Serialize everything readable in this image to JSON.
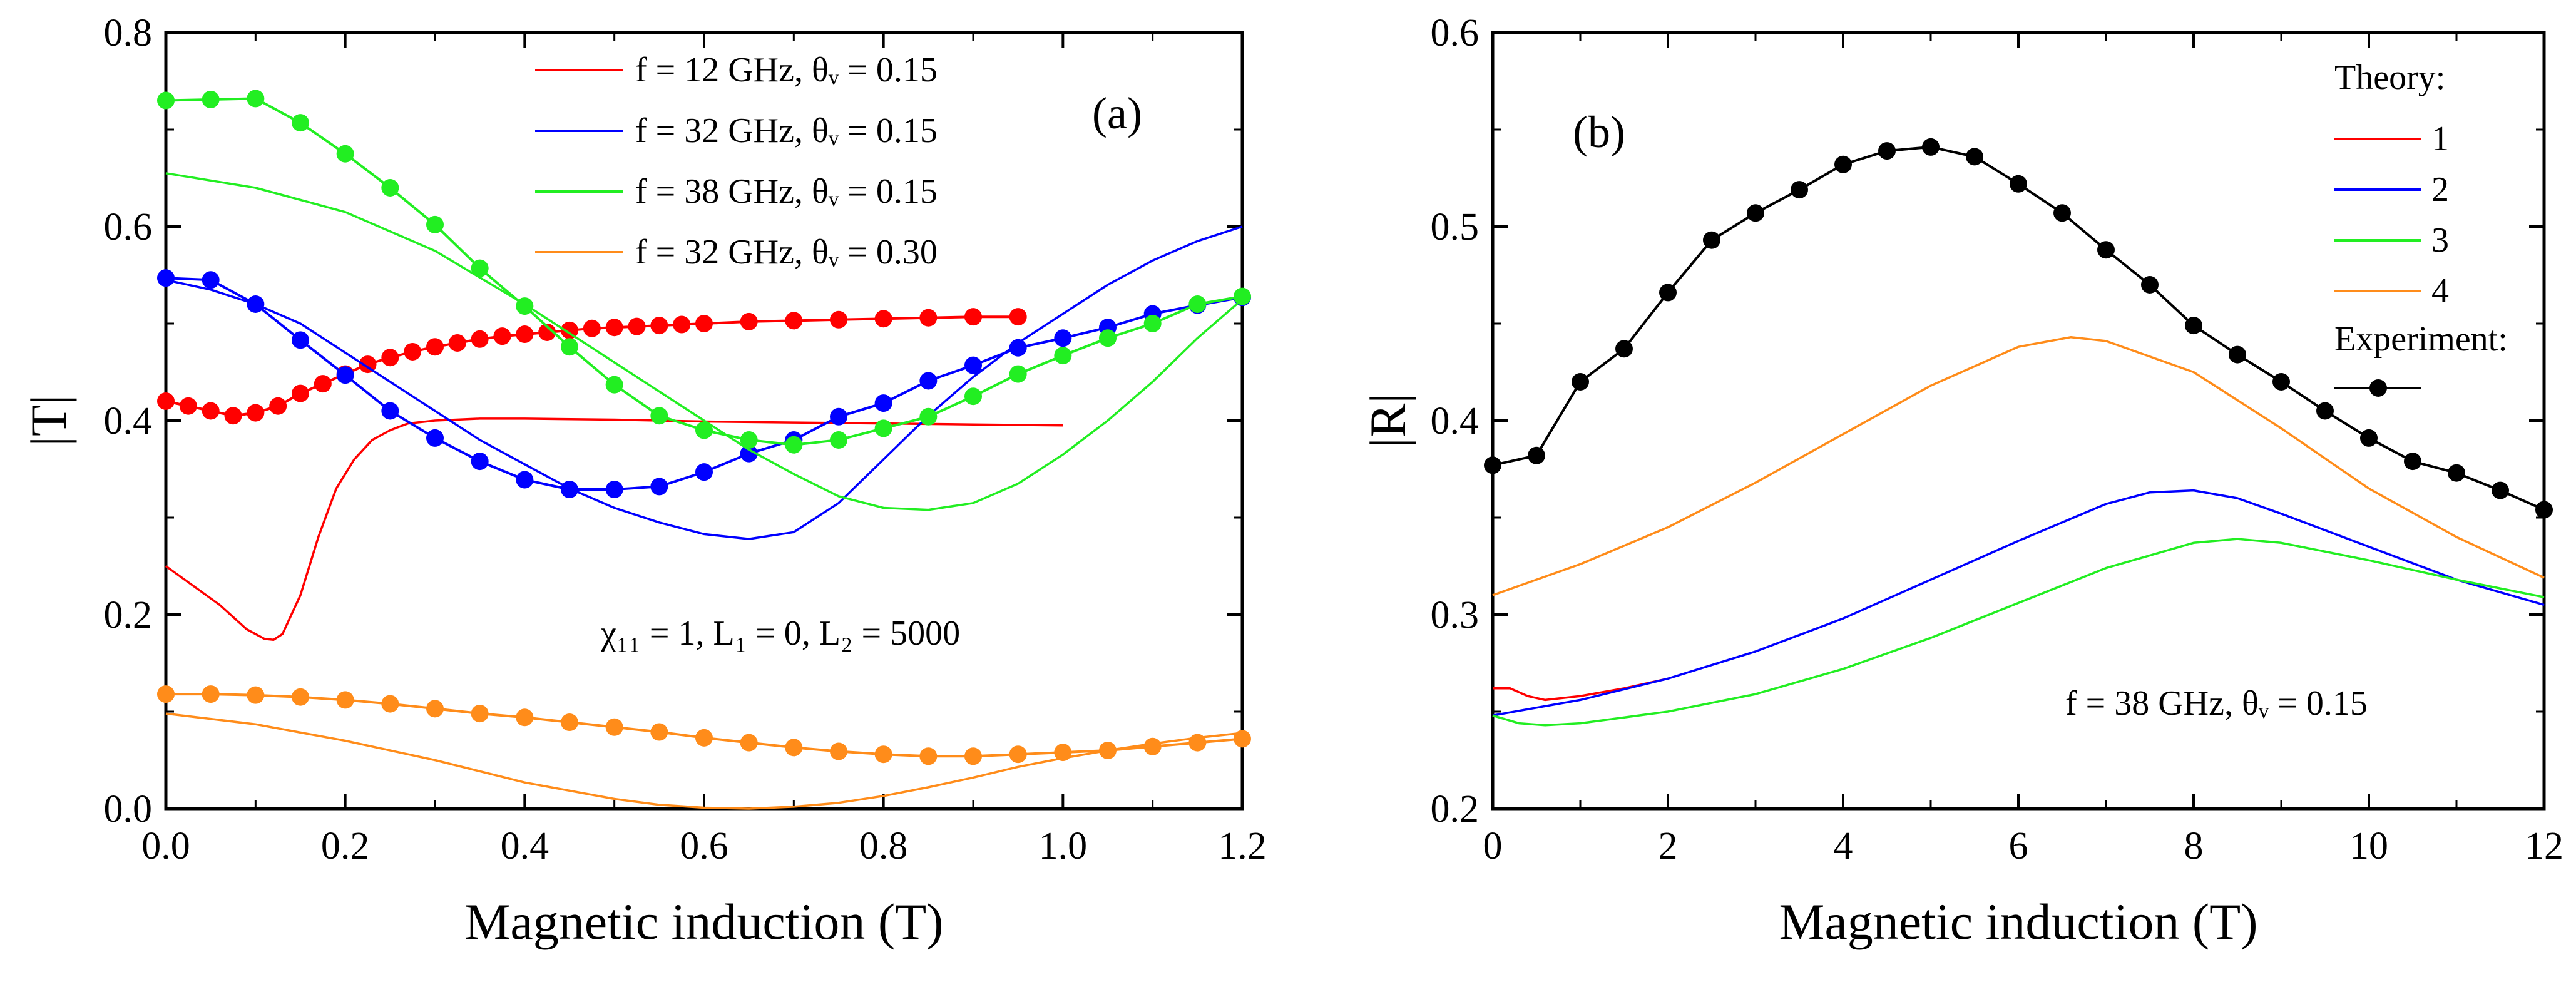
{
  "chart_data": [
    {
      "type": "line",
      "panel_label": "(a)",
      "xlabel": "Magnetic induction (T)",
      "ylabel": "|T|",
      "xlim": [
        0,
        1.2
      ],
      "ylim": [
        0,
        0.8
      ],
      "xticks": [
        "0.0",
        "0.2",
        "0.4",
        "0.6",
        "0.8",
        "1.0",
        "1.2"
      ],
      "yticks": [
        "0.0",
        "0.2",
        "0.4",
        "0.6",
        "0.8"
      ],
      "annotation": "χ₁₁ = 1, L₁ = 0, L₂ = 5000",
      "legend_position": "top-center",
      "series": [
        {
          "name": "f = 12 GHz, θᵥ = 0.15",
          "color": "#ff0000",
          "kind": "theory",
          "x": [
            0,
            0.03,
            0.06,
            0.09,
            0.11,
            0.12,
            0.13,
            0.15,
            0.17,
            0.19,
            0.21,
            0.23,
            0.25,
            0.27,
            0.3,
            0.35,
            0.4,
            0.5,
            0.6,
            0.7,
            0.8,
            0.9,
            1.0
          ],
          "y": [
            0.25,
            0.23,
            0.21,
            0.185,
            0.175,
            0.174,
            0.18,
            0.22,
            0.28,
            0.33,
            0.36,
            0.38,
            0.39,
            0.397,
            0.4,
            0.402,
            0.402,
            0.401,
            0.399,
            0.398,
            0.397,
            0.396,
            0.395
          ]
        },
        {
          "name": "f = 12 GHz, θᵥ = 0.15 (experiment)",
          "color": "#ff0000",
          "kind": "experiment",
          "x": [
            0,
            0.025,
            0.05,
            0.075,
            0.1,
            0.125,
            0.15,
            0.175,
            0.2,
            0.225,
            0.25,
            0.275,
            0.3,
            0.325,
            0.35,
            0.375,
            0.4,
            0.425,
            0.45,
            0.475,
            0.5,
            0.525,
            0.55,
            0.575,
            0.6,
            0.65,
            0.7,
            0.75,
            0.8,
            0.85,
            0.9,
            0.95
          ],
          "y": [
            0.42,
            0.415,
            0.41,
            0.405,
            0.408,
            0.415,
            0.428,
            0.438,
            0.448,
            0.458,
            0.465,
            0.471,
            0.476,
            0.48,
            0.484,
            0.487,
            0.489,
            0.491,
            0.493,
            0.495,
            0.496,
            0.497,
            0.498,
            0.499,
            0.5,
            0.502,
            0.503,
            0.504,
            0.505,
            0.506,
            0.507,
            0.507
          ]
        },
        {
          "name": "f = 32 GHz, θᵥ = 0.15",
          "color": "#0000ff",
          "kind": "theory",
          "x": [
            0,
            0.05,
            0.1,
            0.15,
            0.2,
            0.25,
            0.3,
            0.35,
            0.4,
            0.45,
            0.5,
            0.55,
            0.6,
            0.65,
            0.7,
            0.75,
            0.8,
            0.85,
            0.9,
            0.95,
            1.0,
            1.05,
            1.1,
            1.15,
            1.2
          ],
          "y": [
            0.545,
            0.535,
            0.52,
            0.5,
            0.47,
            0.44,
            0.41,
            0.38,
            0.355,
            0.33,
            0.31,
            0.295,
            0.283,
            0.278,
            0.285,
            0.315,
            0.36,
            0.405,
            0.445,
            0.48,
            0.51,
            0.54,
            0.565,
            0.585,
            0.6
          ]
        },
        {
          "name": "f = 32 GHz, θᵥ = 0.15 (experiment)",
          "color": "#0000ff",
          "kind": "experiment",
          "x": [
            0,
            0.05,
            0.1,
            0.15,
            0.2,
            0.25,
            0.3,
            0.35,
            0.4,
            0.45,
            0.5,
            0.55,
            0.6,
            0.65,
            0.7,
            0.75,
            0.8,
            0.85,
            0.9,
            0.95,
            1.0,
            1.05,
            1.1,
            1.15,
            1.2
          ],
          "y": [
            0.547,
            0.545,
            0.52,
            0.483,
            0.447,
            0.41,
            0.382,
            0.358,
            0.339,
            0.329,
            0.329,
            0.332,
            0.347,
            0.366,
            0.38,
            0.404,
            0.418,
            0.441,
            0.457,
            0.475,
            0.485,
            0.496,
            0.51,
            0.519,
            0.527
          ]
        },
        {
          "name": "f = 38 GHz, θᵥ = 0.15",
          "color": "#22ee22",
          "kind": "theory",
          "x": [
            0,
            0.1,
            0.2,
            0.3,
            0.4,
            0.5,
            0.55,
            0.6,
            0.65,
            0.7,
            0.75,
            0.8,
            0.85,
            0.9,
            0.95,
            1.0,
            1.05,
            1.1,
            1.15,
            1.2
          ],
          "y": [
            0.655,
            0.64,
            0.615,
            0.575,
            0.52,
            0.46,
            0.43,
            0.4,
            0.37,
            0.345,
            0.322,
            0.31,
            0.308,
            0.315,
            0.335,
            0.365,
            0.4,
            0.44,
            0.485,
            0.525
          ]
        },
        {
          "name": "f = 38 GHz, θᵥ = 0.15 (experiment)",
          "color": "#22ee22",
          "kind": "experiment",
          "x": [
            0,
            0.05,
            0.1,
            0.15,
            0.2,
            0.25,
            0.3,
            0.35,
            0.4,
            0.45,
            0.5,
            0.55,
            0.6,
            0.65,
            0.7,
            0.75,
            0.8,
            0.85,
            0.9,
            0.95,
            1.0,
            1.05,
            1.1,
            1.15,
            1.2
          ],
          "y": [
            0.73,
            0.731,
            0.732,
            0.707,
            0.675,
            0.64,
            0.602,
            0.557,
            0.518,
            0.476,
            0.437,
            0.405,
            0.39,
            0.38,
            0.375,
            0.38,
            0.392,
            0.404,
            0.425,
            0.448,
            0.467,
            0.485,
            0.5,
            0.52,
            0.528
          ]
        },
        {
          "name": "f = 32 GHz, θᵥ = 0.30",
          "color": "#ff8c1a",
          "kind": "theory",
          "x": [
            0,
            0.1,
            0.2,
            0.3,
            0.4,
            0.5,
            0.55,
            0.6,
            0.65,
            0.7,
            0.75,
            0.8,
            0.85,
            0.9,
            0.95,
            1.0,
            1.05,
            1.1,
            1.15,
            1.2
          ],
          "y": [
            0.098,
            0.087,
            0.07,
            0.05,
            0.027,
            0.01,
            0.004,
            0.001,
            0.0,
            0.002,
            0.006,
            0.013,
            0.022,
            0.032,
            0.043,
            0.052,
            0.06,
            0.067,
            0.073,
            0.078
          ]
        },
        {
          "name": "f = 32 GHz, θᵥ = 0.30 (experiment)",
          "color": "#ff8c1a",
          "kind": "experiment",
          "x": [
            0,
            0.05,
            0.1,
            0.15,
            0.2,
            0.25,
            0.3,
            0.35,
            0.4,
            0.45,
            0.5,
            0.55,
            0.6,
            0.65,
            0.7,
            0.75,
            0.8,
            0.85,
            0.9,
            0.95,
            1.0,
            1.05,
            1.1,
            1.15,
            1.2
          ],
          "y": [
            0.118,
            0.118,
            0.117,
            0.115,
            0.112,
            0.108,
            0.103,
            0.098,
            0.094,
            0.089,
            0.084,
            0.079,
            0.073,
            0.068,
            0.063,
            0.059,
            0.056,
            0.054,
            0.054,
            0.056,
            0.058,
            0.06,
            0.064,
            0.068,
            0.072
          ]
        }
      ],
      "legend": [
        {
          "label": "f = 12 GHz, θᵥ = 0.15",
          "color": "#ff0000"
        },
        {
          "label": "f = 32 GHz, θᵥ = 0.15",
          "color": "#0000ff"
        },
        {
          "label": "f = 38 GHz, θᵥ = 0.15",
          "color": "#22ee22"
        },
        {
          "label": "f = 32 GHz, θᵥ = 0.30",
          "color": "#ff8c1a"
        }
      ]
    },
    {
      "type": "line",
      "panel_label": "(b)",
      "xlabel": "Magnetic induction (T)",
      "ylabel": "|R|",
      "xlim": [
        0,
        12
      ],
      "ylim": [
        0.2,
        0.6
      ],
      "xticks": [
        "0",
        "2",
        "4",
        "6",
        "8",
        "10",
        "12"
      ],
      "yticks": [
        "0.2",
        "0.3",
        "0.4",
        "0.5",
        "0.6"
      ],
      "annotation": "f = 38 GHz, θᵥ = 0.15",
      "legend_position": "top-right",
      "legend_title": "Theory:",
      "legend_experiment_title": "Experiment:",
      "series": [
        {
          "name": "1",
          "color": "#ff0000",
          "kind": "theory",
          "x": [
            0,
            0.2,
            0.4,
            0.6,
            0.8,
            1.0,
            1.5,
            2.0
          ],
          "y": [
            0.262,
            0.262,
            0.258,
            0.256,
            0.257,
            0.258,
            0.262,
            0.267
          ]
        },
        {
          "name": "2",
          "color": "#0000ff",
          "kind": "theory",
          "x": [
            0,
            1,
            2,
            3,
            4,
            5,
            6,
            7,
            7.5,
            8,
            8.5,
            9,
            10,
            11,
            12
          ],
          "y": [
            0.248,
            0.256,
            0.267,
            0.281,
            0.298,
            0.318,
            0.338,
            0.357,
            0.363,
            0.364,
            0.36,
            0.352,
            0.335,
            0.318,
            0.305
          ]
        },
        {
          "name": "3",
          "color": "#22ee22",
          "kind": "theory",
          "x": [
            0,
            0.3,
            0.6,
            1,
            2,
            3,
            4,
            5,
            6,
            7,
            8,
            8.5,
            9,
            10,
            11,
            12
          ],
          "y": [
            0.248,
            0.244,
            0.243,
            0.244,
            0.25,
            0.259,
            0.272,
            0.288,
            0.306,
            0.324,
            0.337,
            0.339,
            0.337,
            0.328,
            0.318,
            0.309
          ]
        },
        {
          "name": "4",
          "color": "#ff8c1a",
          "kind": "theory",
          "x": [
            0,
            1,
            2,
            3,
            4,
            5,
            6,
            6.6,
            7,
            8,
            9,
            10,
            11,
            12
          ],
          "y": [
            0.31,
            0.326,
            0.345,
            0.368,
            0.393,
            0.418,
            0.438,
            0.443,
            0.441,
            0.425,
            0.396,
            0.365,
            0.34,
            0.319
          ]
        },
        {
          "name": "Experiment",
          "color": "#000000",
          "kind": "experiment",
          "x": [
            0,
            0.5,
            1,
            1.5,
            2,
            2.5,
            3,
            3.5,
            4,
            4.5,
            5,
            5.5,
            6,
            6.5,
            7,
            7.5,
            8,
            8.5,
            9,
            9.5,
            10,
            10.5,
            11,
            11.5,
            12
          ],
          "y": [
            0.377,
            0.382,
            0.42,
            0.437,
            0.466,
            0.493,
            0.507,
            0.519,
            0.532,
            0.539,
            0.541,
            0.536,
            0.522,
            0.507,
            0.488,
            0.47,
            0.449,
            0.434,
            0.42,
            0.405,
            0.391,
            0.379,
            0.373,
            0.364,
            0.354
          ]
        }
      ],
      "legend": [
        {
          "label": "1",
          "color": "#ff0000"
        },
        {
          "label": "2",
          "color": "#0000ff"
        },
        {
          "label": "3",
          "color": "#22ee22"
        },
        {
          "label": "4",
          "color": "#ff8c1a"
        }
      ]
    }
  ]
}
